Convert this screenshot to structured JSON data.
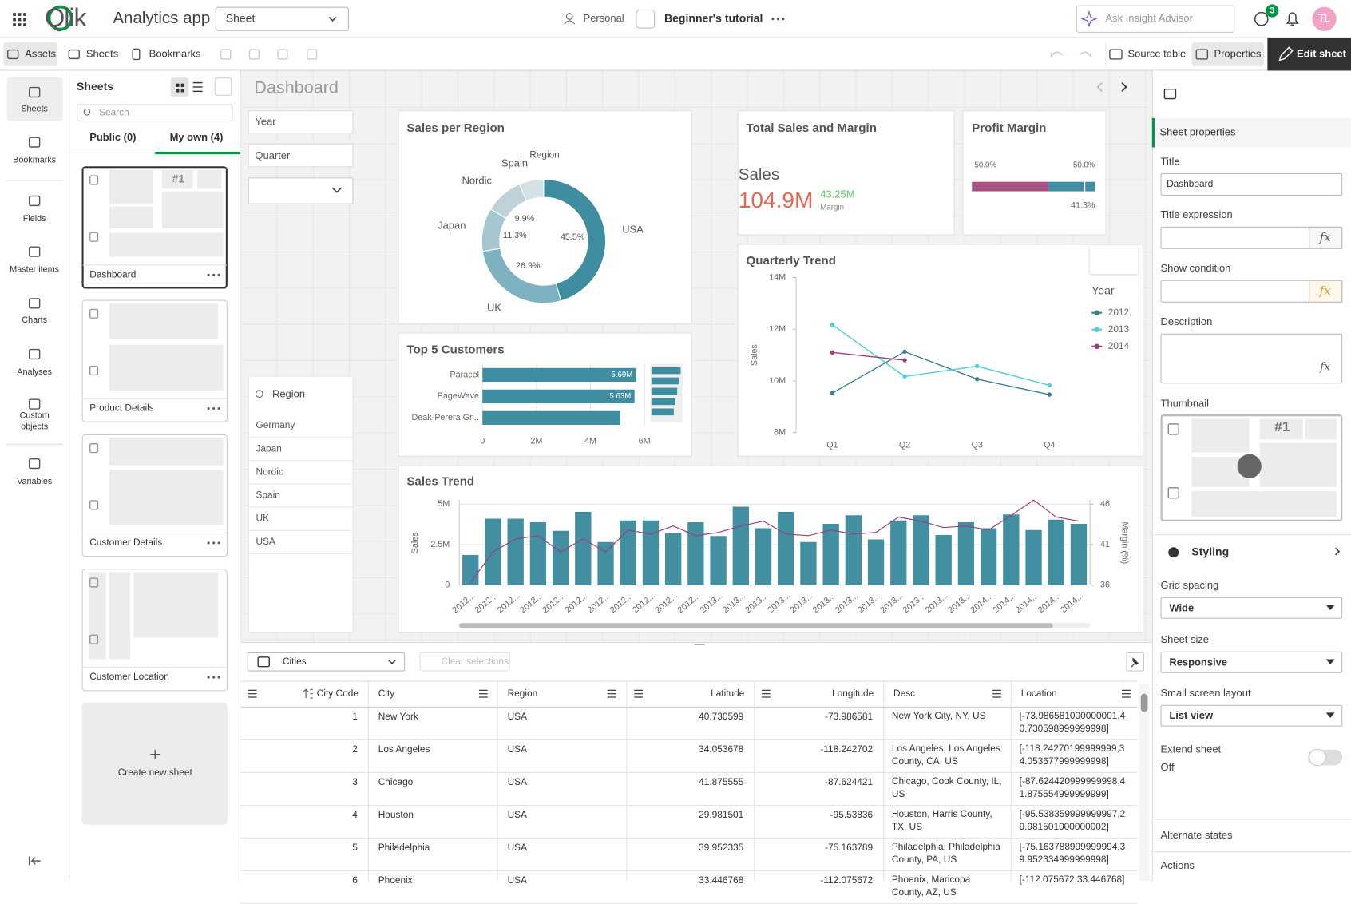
{
  "top_bar": {
    "logo": "Qlik",
    "app_name": "Analytics app",
    "sheet_menu": "Sheet",
    "space": "Personal",
    "tutorial": "Beginner's tutorial",
    "insight_advisor": "Ask Insight Advisor",
    "notification_count": "3",
    "avatar": "TL"
  },
  "toolbar": {
    "assets": "Assets",
    "sheets": "Sheets",
    "bookmarks": "Bookmarks",
    "source_table": "Source table",
    "properties": "Properties",
    "edit_sheet": "Edit sheet"
  },
  "nav": [
    "Sheets",
    "Bookmarks",
    "Fields",
    "Master items",
    "Charts",
    "Analyses",
    "Custom objects",
    "Variables"
  ],
  "sheets_panel": {
    "title": "Sheets",
    "search": "Search",
    "tabs": [
      "Public (0)",
      "My own (4)"
    ],
    "thumbnail_kpi": "#1",
    "sheets": [
      "Dashboard",
      "Product Details",
      "Customer Details",
      "Customer Location"
    ],
    "create": "Create new sheet"
  },
  "dashboard": {
    "title": "Dashboard",
    "filters": [
      "Year",
      "Quarter"
    ],
    "region_filter": {
      "title": "Region",
      "items": [
        "Germany",
        "Japan",
        "Nordic",
        "Spain",
        "UK",
        "USA"
      ]
    }
  },
  "kpi": {
    "title": "Total Sales and Margin",
    "label": "Sales",
    "value": "104.9M",
    "sub_value": "43.25M",
    "sub_label": "Margin"
  },
  "chart_data": [
    {
      "type": "pie",
      "donut": true,
      "title": "Sales per Region",
      "legend_title": "Region",
      "categories": [
        "USA",
        "UK",
        "Japan",
        "Nordic",
        "Spain"
      ],
      "values": [
        45.5,
        26.9,
        11.3,
        9.9,
        6.4
      ],
      "value_labels": [
        "45.5%",
        "26.9%",
        "11.3%",
        "9.9%",
        null
      ],
      "colors": [
        "#3f8da0",
        "#7fb2c1",
        "#a6c6d1",
        "#bfd2da",
        "#d6e1e6"
      ]
    },
    {
      "type": "bar",
      "orientation": "horizontal",
      "title": "Top 5 Customers",
      "categories": [
        "Paracel",
        "PageWave",
        "Deak-Perera Gr..."
      ],
      "values": [
        5690000,
        5630000,
        5100000
      ],
      "value_labels": [
        "5.69M",
        "5.63M",
        null
      ],
      "color": "#3f8da0",
      "xlim": [
        0,
        6000000
      ],
      "xticks": [
        0,
        {
          "value": 2000000,
          "label": "2M"
        },
        {
          "value": 4000000,
          "label": "4M"
        },
        {
          "value": 6000000,
          "label": "6M"
        }
      ],
      "grid": true
    },
    {
      "type": "gauge",
      "title": "Profit Margin",
      "value": 41.3,
      "value_label": "41.3%",
      "range": [
        -50,
        50
      ],
      "range_labels": [
        "-50.0%",
        "50.0%"
      ],
      "segments": [
        {
          "to": 12,
          "color": "#a8507f"
        },
        {
          "to": 50,
          "color": "#3f8da0"
        }
      ]
    },
    {
      "type": "line",
      "title": "Quarterly Trend",
      "ylabel": "Sales",
      "legend_title": "Year",
      "categories": [
        "Q1",
        "Q2",
        "Q3",
        "Q4"
      ],
      "ylim": [
        8000000,
        14000000
      ],
      "yticks": [
        {
          "value": 8000000,
          "label": "8M"
        },
        {
          "value": 10000000,
          "label": "10M"
        },
        {
          "value": 12000000,
          "label": "12M"
        },
        {
          "value": 14000000,
          "label": "14M"
        }
      ],
      "series": [
        {
          "name": "2012",
          "color": "#3d7f95",
          "values": [
            9530000,
            11130000,
            10070000,
            9470000
          ]
        },
        {
          "name": "2013",
          "color": "#4fd0d4",
          "values": [
            12170000,
            10170000,
            10570000,
            9830000
          ]
        },
        {
          "name": "2014",
          "color": "#9c3f7a",
          "values": [
            11100000,
            10800000,
            null,
            null
          ]
        }
      ]
    },
    {
      "type": "combo",
      "title": "Sales Trend",
      "ylabel": "Sales",
      "y2label": "Margin (%)",
      "categories": [
        "2012...",
        "2012...",
        "2012...",
        "2012...",
        "2012...",
        "2012...",
        "2012...",
        "2012...",
        "2012...",
        "2012...",
        "2012...",
        "2013...",
        "2013...",
        "2013...",
        "2013...",
        "2013...",
        "2013...",
        "2013...",
        "2013...",
        "2013...",
        "2013...",
        "2013...",
        "2013...",
        "2014...",
        "2014...",
        "2014...",
        "2014...",
        "2014..."
      ],
      "ylim": [
        0,
        5000000
      ],
      "yticks": [
        0,
        {
          "value": 2500000,
          "label": "2.5M"
        },
        {
          "value": 5000000,
          "label": "5M"
        }
      ],
      "y2lim": [
        36,
        46
      ],
      "y2ticks": [
        36,
        41,
        46
      ],
      "series": [
        {
          "type": "bar",
          "color": "#428fa2",
          "values": [
            1860000,
            4100000,
            4100000,
            3880000,
            3350000,
            4520000,
            2660000,
            3990000,
            3990000,
            3190000,
            3880000,
            3030000,
            4840000,
            3510000,
            4520000,
            2660000,
            3780000,
            4310000,
            2820000,
            3990000,
            4310000,
            3090000,
            3880000,
            3510000,
            4360000,
            3400000,
            4040000,
            3780000
          ]
        },
        {
          "type": "line",
          "axis": "y2",
          "color": "#9c3f7a",
          "values": [
            36.3,
            40.1,
            41.7,
            42.1,
            40.1,
            41.7,
            40.1,
            42.8,
            42.3,
            43.3,
            42.1,
            42.5,
            43.3,
            43.9,
            42.3,
            42.1,
            42.8,
            42.3,
            42.5,
            44.4,
            43.9,
            43.1,
            43.3,
            42.8,
            44.6,
            46.5,
            44.4,
            43.9
          ]
        }
      ]
    }
  ],
  "table": {
    "dataset": "Cities",
    "clear": "Clear selections",
    "columns": [
      "City Code",
      "City",
      "Region",
      "Latitude",
      "Longitude",
      "Desc",
      "Location"
    ],
    "rows": [
      [
        "1",
        "New York",
        "USA",
        "40.730599",
        "-73.986581",
        "New York City, NY, US",
        "[-73.986581000000001,40.730598999999998]"
      ],
      [
        "2",
        "Los Angeles",
        "USA",
        "34.053678",
        "-118.242702",
        "Los Angeles, Los Angeles County, CA, US",
        "[-118.24270199999999,34.053677999999998]"
      ],
      [
        "3",
        "Chicago",
        "USA",
        "41.875555",
        "-87.624421",
        "Chicago, Cook County, IL, US",
        "[-87.624420999999998,41.875554999999999]"
      ],
      [
        "4",
        "Houston",
        "USA",
        "29.981501",
        "-95.53836",
        "Houston, Harris County, TX, US",
        "[-95.538359999999997,29.981501000000002]"
      ],
      [
        "5",
        "Philadelphia",
        "USA",
        "39.952335",
        "-75.163789",
        "Philadelphia, Philadelphia County, PA, US",
        "[-75.163788999999994,39.952334999999998]"
      ],
      [
        "6",
        "Phoenix",
        "USA",
        "33.446768",
        "-112.075672",
        "Phoenix, Maricopa County, AZ, US",
        "[-112.075672,33.446768]"
      ]
    ]
  },
  "properties": {
    "section": "Sheet properties",
    "title_label": "Title",
    "title_value": "Dashboard",
    "title_expression": "Title expression",
    "show_condition": "Show condition",
    "description": "Description",
    "fx": "fx",
    "thumbnail": "Thumbnail",
    "thumbnail_kpi": "#1",
    "styling": "Styling",
    "grid_spacing": "Grid spacing",
    "grid_spacing_value": "Wide",
    "sheet_size": "Sheet size",
    "sheet_size_value": "Responsive",
    "small_screen_layout": "Small screen layout",
    "small_screen_value": "List view",
    "extend_sheet": "Extend sheet",
    "extend_value": "Off",
    "alternate_states": "Alternate states",
    "actions": "Actions"
  }
}
